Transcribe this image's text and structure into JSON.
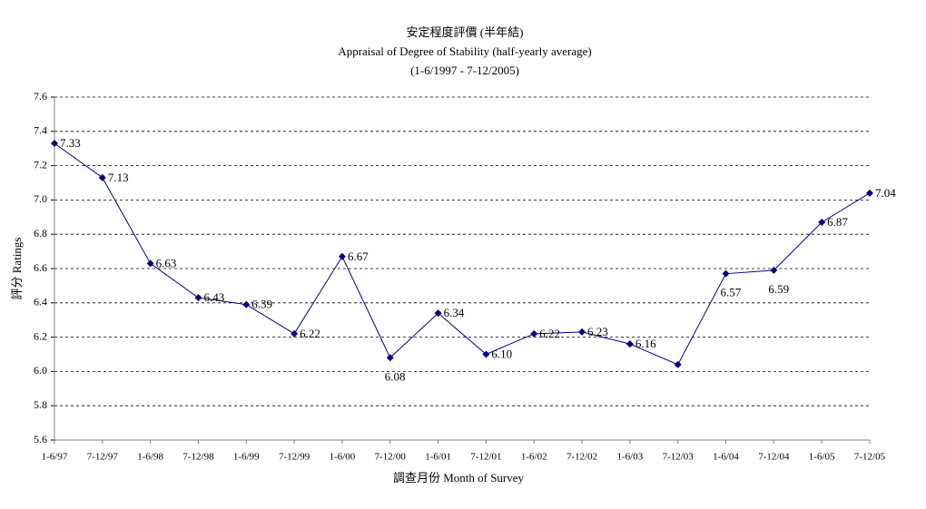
{
  "chart_data": {
    "type": "line",
    "title": "安定程度評價 (半年結)",
    "subtitle": "Appraisal of Degree of Stability (half-yearly average)",
    "subtitle2": "(1-6/1997 - 7-12/2005)",
    "y_label": "評分 Ratings",
    "x_label": "調查月份 Month of Survey",
    "categories": [
      "1-6/97",
      "7-12/97",
      "1-6/98",
      "7-12/98",
      "1-6/99",
      "7-12/99",
      "1-6/00",
      "7-12/00",
      "1-6/01",
      "7-12/01",
      "1-6/02",
      "7-12/02",
      "1-6/03",
      "7-12/03",
      "1-6/04",
      "7-12/04",
      "1-6/05",
      "7-12/05"
    ],
    "series": [
      {
        "name": "Ratings",
        "color": "#000080",
        "values": [
          7.33,
          7.13,
          6.63,
          6.43,
          6.39,
          6.22,
          6.67,
          6.08,
          6.34,
          6.1,
          6.22,
          6.23,
          6.16,
          6.04,
          6.57,
          6.59,
          6.87,
          7.04
        ],
        "value_labels": [
          "7.33",
          "7.13",
          "6.63",
          "6.43",
          "6.39",
          "6.22",
          "6.67",
          "6.08",
          "6.34",
          "6.10",
          "6.22",
          "6.23",
          "6.16",
          null,
          "6.57",
          "6.59",
          "6.87",
          "7.04"
        ]
      }
    ],
    "ylim": [
      5.6,
      7.6
    ],
    "yticks": [
      5.6,
      5.8,
      {
        "value": 6,
        "label": "6.0"
      },
      6.2,
      6.4,
      6.6,
      6.8,
      {
        "value": 7,
        "label": "7.0"
      },
      7.2,
      7.4,
      7.6
    ],
    "grid": true
  }
}
